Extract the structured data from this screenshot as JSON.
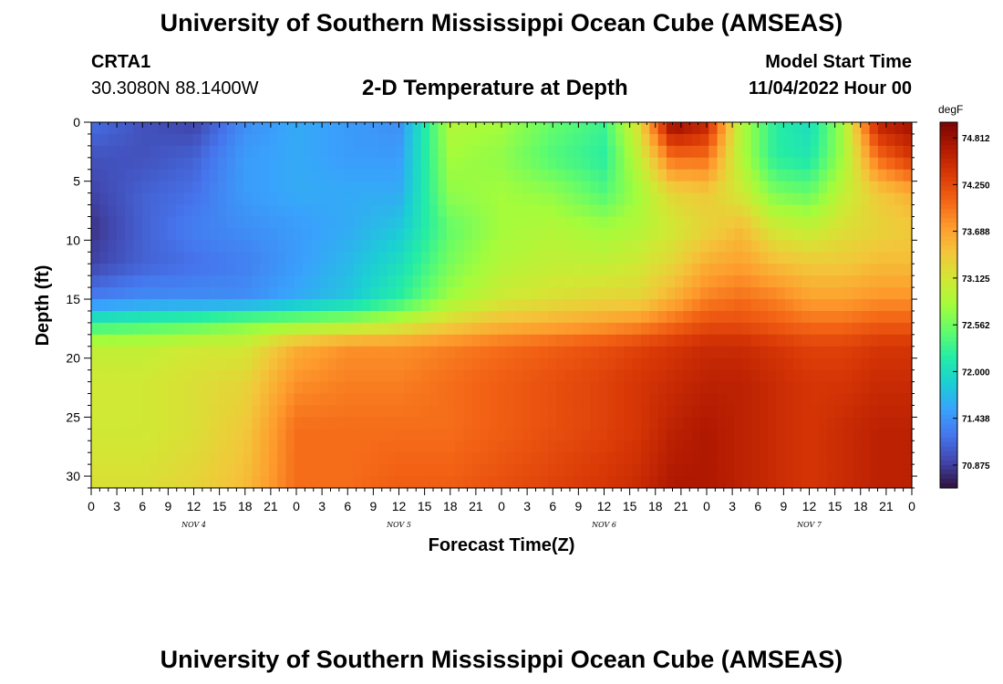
{
  "header": {
    "title": "University of Southern Mississippi Ocean Cube (AMSEAS)",
    "station": "CRTA1",
    "coordinates": "30.3080N  88.1400W",
    "subtitle": "2-D Temperature at Depth",
    "start_label": "Model Start Time",
    "start_value": "11/04/2022 Hour 00"
  },
  "footer": {
    "title": "University of Southern Mississippi Ocean Cube (AMSEAS)"
  },
  "chart_data": {
    "type": "heatmap",
    "title": "2-D Temperature at Depth",
    "xlabel": "Forecast Time(Z)",
    "ylabel": "Depth (ft)",
    "x_unit": "forecast hour",
    "xlim": [
      0,
      96
    ],
    "ylim": [
      31,
      0
    ],
    "x_tick_values": [
      0,
      3,
      6,
      9,
      12,
      15,
      18,
      21,
      24,
      27,
      30,
      33,
      36,
      39,
      42,
      45,
      48,
      51,
      54,
      57,
      60,
      63,
      66,
      69,
      72,
      75,
      78,
      81,
      84,
      87,
      90,
      93,
      96
    ],
    "x_tick_labels": [
      "0",
      "3",
      "6",
      "9",
      "12",
      "15",
      "18",
      "21",
      "0",
      "3",
      "6",
      "9",
      "12",
      "15",
      "18",
      "21",
      "0",
      "3",
      "6",
      "9",
      "12",
      "15",
      "18",
      "21",
      "0",
      "3",
      "6",
      "9",
      "12",
      "15",
      "18",
      "21",
      "0"
    ],
    "day_labels": [
      {
        "hour": 12,
        "label": "NOV 4"
      },
      {
        "hour": 36,
        "label": "NOV 5"
      },
      {
        "hour": 60,
        "label": "NOV 6"
      },
      {
        "hour": 84,
        "label": "NOV 7"
      }
    ],
    "y_ticks": [
      0,
      5,
      10,
      15,
      20,
      25,
      30
    ],
    "colorbar": {
      "unit": "degF",
      "min": 70.6,
      "max": 75.0,
      "tick_labels": [
        "74.812",
        "74.250",
        "73.688",
        "73.125",
        "72.562",
        "72.000",
        "71.438",
        "70.875"
      ],
      "colors": [
        "#30123b",
        "#4145ab",
        "#4675ed",
        "#39a2fc",
        "#1bcfd4",
        "#24eca6",
        "#61fc6c",
        "#a4fc3b",
        "#d1e834",
        "#f3c63a",
        "#fe9b2d",
        "#f36315",
        "#d93806",
        "#b11901",
        "#7a0402"
      ]
    },
    "grid": {
      "description": "approximate temperature field in degF, rows = depth (ft), columns = forecast hour",
      "hours": [
        0,
        6,
        12,
        18,
        24,
        30,
        36,
        42,
        48,
        54,
        60,
        64,
        68,
        72,
        76,
        80,
        84,
        88,
        92,
        96
      ],
      "depths": [
        0,
        3,
        6,
        9,
        12,
        15,
        17,
        19,
        22,
        26,
        31
      ],
      "values": [
        [
          71.2,
          71.0,
          70.9,
          71.4,
          71.6,
          71.5,
          71.4,
          72.9,
          72.8,
          72.5,
          72.3,
          73.2,
          74.9,
          74.6,
          72.9,
          72.2,
          72.0,
          72.8,
          74.6,
          74.8
        ],
        [
          71.0,
          71.0,
          71.1,
          71.5,
          71.6,
          71.5,
          71.5,
          72.8,
          72.7,
          72.4,
          72.2,
          73.0,
          74.0,
          74.0,
          72.9,
          72.2,
          72.1,
          72.8,
          74.0,
          74.4
        ],
        [
          70.9,
          71.1,
          71.2,
          71.5,
          71.6,
          71.6,
          71.6,
          72.7,
          72.8,
          72.7,
          72.4,
          72.8,
          73.3,
          73.4,
          73.1,
          72.6,
          72.5,
          73.0,
          73.4,
          73.6
        ],
        [
          70.8,
          71.1,
          71.3,
          71.4,
          71.5,
          71.6,
          71.8,
          72.5,
          72.8,
          72.9,
          72.8,
          72.9,
          73.1,
          73.3,
          73.5,
          73.1,
          73.0,
          73.2,
          73.3,
          73.4
        ],
        [
          70.9,
          71.1,
          71.2,
          71.3,
          71.5,
          71.7,
          72.0,
          72.6,
          72.9,
          73.0,
          73.0,
          73.1,
          73.3,
          73.6,
          73.7,
          73.5,
          73.4,
          73.4,
          73.5,
          73.5
        ],
        [
          71.3,
          71.4,
          71.4,
          71.4,
          71.6,
          71.8,
          72.2,
          72.8,
          73.1,
          73.2,
          73.3,
          73.3,
          73.6,
          73.9,
          74.0,
          73.9,
          73.7,
          73.7,
          73.8,
          73.8
        ],
        [
          72.2,
          72.3,
          72.4,
          72.6,
          72.7,
          72.8,
          73.0,
          73.3,
          73.5,
          73.6,
          73.7,
          73.8,
          74.0,
          74.2,
          74.2,
          74.1,
          74.0,
          74.0,
          74.1,
          74.1
        ],
        [
          73.0,
          73.0,
          73.1,
          73.1,
          73.6,
          73.8,
          73.8,
          73.9,
          74.0,
          74.1,
          74.2,
          74.3,
          74.4,
          74.5,
          74.5,
          74.4,
          74.3,
          74.3,
          74.4,
          74.4
        ],
        [
          73.1,
          73.1,
          73.2,
          73.3,
          73.8,
          73.9,
          73.9,
          74.0,
          74.1,
          74.2,
          74.3,
          74.4,
          74.5,
          74.6,
          74.6,
          74.5,
          74.4,
          74.4,
          74.5,
          74.5
        ],
        [
          73.1,
          73.1,
          73.2,
          73.4,
          74.0,
          74.0,
          74.0,
          74.0,
          74.1,
          74.2,
          74.3,
          74.4,
          74.6,
          74.7,
          74.6,
          74.5,
          74.4,
          74.5,
          74.6,
          74.6
        ],
        [
          73.2,
          73.2,
          73.3,
          73.5,
          74.0,
          74.0,
          74.1,
          74.1,
          74.2,
          74.3,
          74.4,
          74.5,
          74.7,
          74.7,
          74.6,
          74.5,
          74.4,
          74.5,
          74.6,
          74.6
        ]
      ]
    }
  }
}
